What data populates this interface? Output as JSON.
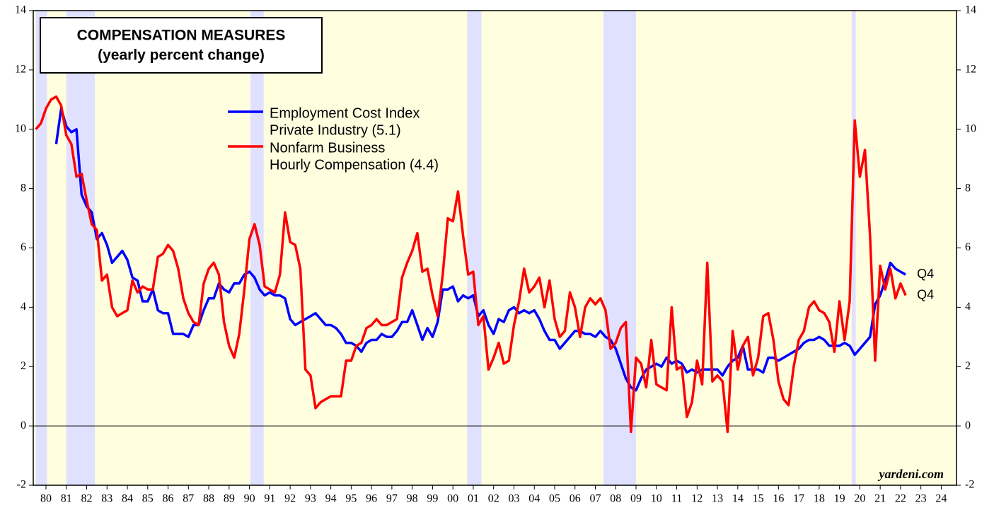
{
  "chart_data": {
    "type": "line",
    "title": "COMPENSATION MEASURES",
    "subtitle": "(yearly percent change)",
    "source": "yardeni.com",
    "xlim": [
      1979.875,
      2025.25
    ],
    "ylim": [
      -2,
      14
    ],
    "yticks": [
      -2,
      0,
      2,
      4,
      6,
      8,
      10,
      12,
      14
    ],
    "xticks": [
      {
        "value": 1980.5,
        "label": "80"
      },
      {
        "value": 1981.5,
        "label": "81"
      },
      {
        "value": 1982.5,
        "label": "82"
      },
      {
        "value": 1983.5,
        "label": "83"
      },
      {
        "value": 1984.5,
        "label": "84"
      },
      {
        "value": 1985.5,
        "label": "85"
      },
      {
        "value": 1986.5,
        "label": "86"
      },
      {
        "value": 1987.5,
        "label": "87"
      },
      {
        "value": 1988.5,
        "label": "88"
      },
      {
        "value": 1989.5,
        "label": "89"
      },
      {
        "value": 1990.5,
        "label": "90"
      },
      {
        "value": 1991.5,
        "label": "91"
      },
      {
        "value": 1992.5,
        "label": "92"
      },
      {
        "value": 1993.5,
        "label": "93"
      },
      {
        "value": 1994.5,
        "label": "94"
      },
      {
        "value": 1995.5,
        "label": "95"
      },
      {
        "value": 1996.5,
        "label": "96"
      },
      {
        "value": 1997.5,
        "label": "97"
      },
      {
        "value": 1998.5,
        "label": "98"
      },
      {
        "value": 1999.5,
        "label": "99"
      },
      {
        "value": 2000.5,
        "label": "00"
      },
      {
        "value": 2001.5,
        "label": "01"
      },
      {
        "value": 2002.5,
        "label": "02"
      },
      {
        "value": 2003.5,
        "label": "03"
      },
      {
        "value": 2004.5,
        "label": "04"
      },
      {
        "value": 2005.5,
        "label": "05"
      },
      {
        "value": 2006.5,
        "label": "06"
      },
      {
        "value": 2007.5,
        "label": "07"
      },
      {
        "value": 2008.5,
        "label": "08"
      },
      {
        "value": 2009.5,
        "label": "09"
      },
      {
        "value": 2010.5,
        "label": "10"
      },
      {
        "value": 2011.5,
        "label": "11"
      },
      {
        "value": 2012.5,
        "label": "12"
      },
      {
        "value": 2013.5,
        "label": "13"
      },
      {
        "value": 2014.5,
        "label": "14"
      },
      {
        "value": 2015.5,
        "label": "15"
      },
      {
        "value": 2016.5,
        "label": "16"
      },
      {
        "value": 2017.5,
        "label": "17"
      },
      {
        "value": 2018.5,
        "label": "18"
      },
      {
        "value": 2019.5,
        "label": "19"
      },
      {
        "value": 2020.5,
        "label": "20"
      },
      {
        "value": 2021.5,
        "label": "21"
      },
      {
        "value": 2022.5,
        "label": "22"
      },
      {
        "value": 2023.5,
        "label": "23"
      },
      {
        "value": 2024.5,
        "label": "24"
      }
    ],
    "recessions": [
      [
        1980.0,
        1980.55
      ],
      [
        1981.5,
        1982.9
      ],
      [
        1990.55,
        1991.2
      ],
      [
        2001.2,
        2001.9
      ],
      [
        2007.9,
        2009.5
      ],
      [
        2020.1,
        2020.3
      ]
    ],
    "x": [
      1980,
      1980.25,
      1980.5,
      1980.75,
      1981,
      1981.25,
      1981.5,
      1981.75,
      1982,
      1982.25,
      1982.5,
      1982.75,
      1983,
      1983.25,
      1983.5,
      1983.75,
      1984,
      1984.25,
      1984.5,
      1984.75,
      1985,
      1985.25,
      1985.5,
      1985.75,
      1986,
      1986.25,
      1986.5,
      1986.75,
      1987,
      1987.25,
      1987.5,
      1987.75,
      1988,
      1988.25,
      1988.5,
      1988.75,
      1989,
      1989.25,
      1989.5,
      1989.75,
      1990,
      1990.25,
      1990.5,
      1990.75,
      1991,
      1991.25,
      1991.5,
      1991.75,
      1992,
      1992.25,
      1992.5,
      1992.75,
      1993,
      1993.25,
      1993.5,
      1993.75,
      1994,
      1994.25,
      1994.5,
      1994.75,
      1995,
      1995.25,
      1995.5,
      1995.75,
      1996,
      1996.25,
      1996.5,
      1996.75,
      1997,
      1997.25,
      1997.5,
      1997.75,
      1998,
      1998.25,
      1998.5,
      1998.75,
      1999,
      1999.25,
      1999.5,
      1999.75,
      2000,
      2000.25,
      2000.5,
      2000.75,
      2001,
      2001.25,
      2001.5,
      2001.75,
      2002,
      2002.25,
      2002.5,
      2002.75,
      2003,
      2003.25,
      2003.5,
      2003.75,
      2004,
      2004.25,
      2004.5,
      2004.75,
      2005,
      2005.25,
      2005.5,
      2005.75,
      2006,
      2006.25,
      2006.5,
      2006.75,
      2007,
      2007.25,
      2007.5,
      2007.75,
      2008,
      2008.25,
      2008.5,
      2008.75,
      2009,
      2009.25,
      2009.5,
      2009.75,
      2010,
      2010.25,
      2010.5,
      2010.75,
      2011,
      2011.25,
      2011.5,
      2011.75,
      2012,
      2012.25,
      2012.5,
      2012.75,
      2013,
      2013.25,
      2013.5,
      2013.75,
      2014,
      2014.25,
      2014.5,
      2014.75,
      2015,
      2015.25,
      2015.5,
      2015.75,
      2016,
      2016.25,
      2016.5,
      2016.75,
      2017,
      2017.25,
      2017.5,
      2017.75,
      2018,
      2018.25,
      2018.5,
      2018.75,
      2019,
      2019.25,
      2019.5,
      2019.75,
      2020,
      2020.25,
      2020.5,
      2020.75,
      2021,
      2021.25,
      2021.5,
      2021.75,
      2022,
      2022.25,
      2022.5,
      2022.75
    ],
    "series": [
      {
        "name": "Employment Cost Index",
        "name_line2": "Private Industry (5.1)",
        "end_label": "Q4",
        "color": "#0000ff",
        "values": [
          null,
          null,
          null,
          null,
          9.5,
          10.7,
          10.1,
          9.9,
          10.0,
          7.8,
          7.4,
          7.2,
          6.3,
          6.5,
          6.1,
          5.5,
          5.7,
          5.9,
          5.6,
          5.0,
          4.9,
          4.2,
          4.2,
          4.6,
          3.9,
          3.8,
          3.8,
          3.1,
          3.1,
          3.1,
          3.0,
          3.4,
          3.4,
          3.9,
          4.3,
          4.3,
          4.8,
          4.6,
          4.5,
          4.8,
          4.8,
          5.1,
          5.2,
          5.0,
          4.6,
          4.4,
          4.5,
          4.4,
          4.4,
          4.3,
          3.6,
          3.4,
          3.5,
          3.6,
          3.7,
          3.8,
          3.6,
          3.4,
          3.4,
          3.3,
          3.1,
          2.8,
          2.8,
          2.7,
          2.5,
          2.8,
          2.9,
          2.9,
          3.1,
          3.0,
          3.0,
          3.2,
          3.5,
          3.5,
          3.9,
          3.4,
          2.9,
          3.3,
          3.0,
          3.5,
          4.6,
          4.6,
          4.7,
          4.2,
          4.4,
          4.3,
          4.4,
          3.7,
          3.9,
          3.4,
          3.1,
          3.6,
          3.5,
          3.9,
          4.0,
          3.8,
          3.9,
          3.8,
          3.9,
          3.6,
          3.2,
          2.9,
          2.9,
          2.6,
          2.8,
          3.0,
          3.2,
          3.2,
          3.1,
          3.1,
          3.0,
          3.2,
          3.0,
          2.9,
          2.6,
          2.1,
          1.6,
          1.3,
          1.2,
          1.6,
          1.9,
          2.0,
          2.1,
          2.0,
          2.3,
          2.1,
          2.2,
          2.1,
          1.8,
          1.9,
          1.8,
          1.9,
          1.9,
          1.9,
          1.9,
          1.7,
          2.0,
          2.2,
          2.3,
          2.7,
          1.9,
          1.9,
          1.9,
          1.8,
          2.3,
          2.3,
          2.2,
          2.3,
          2.4,
          2.5,
          2.6,
          2.8,
          2.9,
          2.9,
          3.0,
          2.9,
          2.7,
          2.7,
          2.7,
          2.8,
          2.7,
          2.4,
          2.6,
          2.8,
          3.0,
          4.1,
          4.4,
          4.9,
          5.5,
          5.3,
          5.2,
          5.1
        ]
      },
      {
        "name": "Nonfarm Business",
        "name_line2": "Hourly Compensation (4.4)",
        "end_label": "Q4",
        "color": "#ff0000",
        "values": [
          10.0,
          10.2,
          10.7,
          11.0,
          11.1,
          10.8,
          9.8,
          9.5,
          8.4,
          8.5,
          7.6,
          6.8,
          6.6,
          4.9,
          5.1,
          4.0,
          3.7,
          3.8,
          3.9,
          4.9,
          4.5,
          4.7,
          4.6,
          4.6,
          5.7,
          5.8,
          6.1,
          5.9,
          5.3,
          4.3,
          3.8,
          3.5,
          3.4,
          4.8,
          5.3,
          5.5,
          5.1,
          3.5,
          2.7,
          2.3,
          3.1,
          4.6,
          6.3,
          6.8,
          6.1,
          4.7,
          4.6,
          4.5,
          5.1,
          7.2,
          6.2,
          6.1,
          5.3,
          1.9,
          1.7,
          0.6,
          0.8,
          0.9,
          1.0,
          1.0,
          1.0,
          2.2,
          2.2,
          2.7,
          2.8,
          3.3,
          3.4,
          3.6,
          3.4,
          3.4,
          3.5,
          3.6,
          5.0,
          5.5,
          5.9,
          6.5,
          5.2,
          5.3,
          4.4,
          3.7,
          5.1,
          7.0,
          6.9,
          7.9,
          6.4,
          5.1,
          5.2,
          3.4,
          3.7,
          1.9,
          2.3,
          2.8,
          2.1,
          2.2,
          3.4,
          4.2,
          5.3,
          4.5,
          4.7,
          5.0,
          4.0,
          4.9,
          3.6,
          3.0,
          3.2,
          4.5,
          4.0,
          3.0,
          4.0,
          4.3,
          4.1,
          4.3,
          3.9,
          2.6,
          2.8,
          3.3,
          3.5,
          -0.2,
          2.3,
          2.1,
          1.3,
          2.9,
          1.4,
          1.3,
          1.2,
          4.0,
          1.9,
          2.0,
          0.3,
          0.8,
          2.2,
          1.4,
          5.5,
          1.5,
          1.7,
          1.5,
          -0.2,
          3.2,
          1.9,
          2.7,
          3.0,
          1.7,
          2.3,
          3.7,
          3.8,
          2.9,
          1.5,
          0.9,
          0.7,
          2.0,
          2.9,
          3.2,
          4.0,
          4.2,
          3.9,
          3.8,
          3.5,
          2.5,
          4.2,
          2.9,
          4.2,
          10.3,
          8.4,
          9.3,
          6.4,
          2.2,
          5.4,
          4.6,
          5.3,
          4.3,
          4.8,
          4.4
        ]
      }
    ]
  }
}
